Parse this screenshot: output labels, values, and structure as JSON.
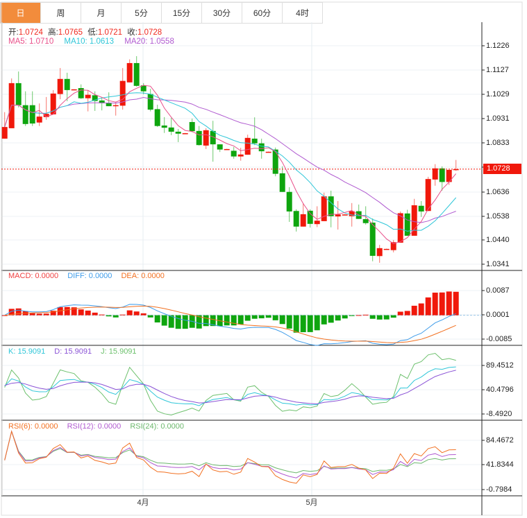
{
  "tabs": [
    {
      "label": "日",
      "active": true
    },
    {
      "label": "周"
    },
    {
      "label": "月"
    },
    {
      "label": "5分"
    },
    {
      "label": "15分"
    },
    {
      "label": "30分"
    },
    {
      "label": "60分"
    },
    {
      "label": "4时"
    }
  ],
  "ohlc_legend": {
    "open_label": "开:",
    "open": "1.0724",
    "high_label": "高:",
    "high": "1.0765",
    "low_label": "低:",
    "low": "1.0721",
    "close_label": "收:",
    "close": "1.0728"
  },
  "ma_legend": {
    "ma5": "MA5: 1.0710",
    "ma10": "MA10: 1.0613",
    "ma20": "MA20: 1.0558"
  },
  "macd_legend": {
    "macd": "MACD: 0.0000",
    "diff": "DIFF: 0.0000",
    "dea": "DEA: 0.0000"
  },
  "kdj_legend": {
    "k": "K: 15.9091",
    "d": "D: 15.9091",
    "j": "J: 15.9091"
  },
  "rsi_legend": {
    "rsi6": "RSI(6): 0.0000",
    "rsi12": "RSI(12): 0.0000",
    "rsi24": "RSI(24): 0.0000"
  },
  "current_price": "1.0728",
  "months": [
    "4月",
    "5月"
  ],
  "colors": {
    "up": "#f0180b",
    "down": "#0ea50e",
    "ma5": "#e84f8a",
    "ma10": "#2ec6d8",
    "ma20": "#b05ad0",
    "diff": "#3d9be9",
    "dea": "#f27020",
    "k": "#2ec6d8",
    "d": "#8a52d6",
    "j": "#6cc06c",
    "rsi6": "#f27020",
    "rsi12": "#b05ad0",
    "rsi24": "#6cb86c",
    "active_tab": "#f28c3c"
  },
  "chart_data": {
    "type": "candlestick",
    "main": {
      "ticks": [
        "1.1226",
        "1.1127",
        "1.1029",
        "1.0931",
        "1.0833",
        "1.0636",
        "1.0538",
        "1.0440",
        "1.0341"
      ],
      "ylim": [
        1.0319,
        1.1321
      ],
      "candles": [
        [
          1.0851,
          1.0958,
          1.0851,
          1.0898
        ],
        [
          1.0893,
          1.1094,
          1.0893,
          1.1075
        ],
        [
          1.1075,
          1.1122,
          1.0977,
          1.0986
        ],
        [
          1.0986,
          1.1042,
          1.0902,
          1.091
        ],
        [
          1.0986,
          1.1042,
          1.0902,
          1.0912
        ],
        [
          1.0916,
          1.0993,
          1.0902,
          1.094
        ],
        [
          1.0938,
          1.1019,
          1.0927,
          1.0951
        ],
        [
          1.0949,
          1.1047,
          1.0949,
          1.1033
        ],
        [
          1.1031,
          1.1136,
          1.101,
          1.1092
        ],
        [
          1.1092,
          1.1117,
          1.1002,
          1.1047
        ],
        [
          1.1047,
          1.105,
          1.1046,
          1.105
        ],
        [
          1.1055,
          1.107,
          1.1011,
          1.1014
        ],
        [
          1.1014,
          1.1047,
          1.0961,
          1.1028
        ],
        [
          1.1026,
          1.1042,
          1.0963,
          1.1003
        ],
        [
          1.1005,
          1.1019,
          1.0965,
          1.0994
        ],
        [
          1.0996,
          1.1038,
          1.0982,
          1.0982
        ],
        [
          1.0982,
          1.1,
          1.0944,
          1.0986
        ],
        [
          1.0984,
          1.1136,
          1.0968,
          1.1084
        ],
        [
          1.1078,
          1.1171,
          1.1078,
          1.1156
        ],
        [
          1.1156,
          1.1184,
          1.1061,
          1.1064
        ],
        [
          1.1066,
          1.1075,
          1.103,
          1.1042
        ],
        [
          1.1031,
          1.1052,
          1.0961,
          1.0968
        ],
        [
          1.097,
          1.0988,
          1.0898,
          1.0902
        ],
        [
          1.0904,
          1.0938,
          1.0874,
          1.0895
        ],
        [
          1.0896,
          1.0935,
          1.0865,
          1.0879
        ],
        [
          1.0879,
          1.089,
          1.0837,
          1.0871
        ],
        [
          1.0872,
          1.0874,
          1.0872,
          1.0873
        ],
        [
          1.0918,
          1.0932,
          1.0877,
          1.0881
        ],
        [
          1.0882,
          1.0902,
          1.0823,
          1.0825
        ],
        [
          1.0823,
          1.0893,
          1.0809,
          1.0885
        ],
        [
          1.0882,
          1.0923,
          1.0758,
          1.0828
        ],
        [
          1.0828,
          1.0828,
          1.0797,
          1.0807
        ],
        [
          1.0808,
          1.081,
          1.0808,
          1.0809
        ],
        [
          1.0802,
          1.0818,
          1.077,
          1.0779
        ],
        [
          1.0779,
          1.0814,
          1.0762,
          1.0787
        ],
        [
          1.0786,
          1.0867,
          1.0786,
          1.0854
        ],
        [
          1.0851,
          1.0937,
          1.0825,
          1.0832
        ],
        [
          1.0832,
          1.0851,
          1.077,
          1.08
        ],
        [
          1.0797,
          1.0799,
          1.0797,
          1.0798
        ],
        [
          1.0807,
          1.0815,
          1.0699,
          1.0709
        ],
        [
          1.0711,
          1.0739,
          1.0636,
          1.0636
        ],
        [
          1.0636,
          1.0655,
          1.0515,
          1.0557
        ],
        [
          1.0559,
          1.0566,
          1.0476,
          1.0496
        ],
        [
          1.0496,
          1.059,
          1.0496,
          1.0546
        ],
        [
          1.056,
          1.0566,
          1.0492,
          1.0507
        ],
        [
          1.0506,
          1.0578,
          1.0494,
          1.052
        ],
        [
          1.0518,
          1.0633,
          1.0518,
          1.0618
        ],
        [
          1.0618,
          1.0641,
          1.0493,
          1.0538
        ],
        [
          1.0537,
          1.0599,
          1.0484,
          1.0545
        ],
        [
          1.0544,
          1.0546,
          1.0544,
          1.0545
        ],
        [
          1.0538,
          1.0591,
          1.0496,
          1.0558
        ],
        [
          1.0558,
          1.0585,
          1.0527,
          1.0527
        ],
        [
          1.0526,
          1.0578,
          1.0504,
          1.051
        ],
        [
          1.0512,
          1.0529,
          1.0356,
          1.0378
        ],
        [
          1.0377,
          1.0422,
          1.035,
          1.0409
        ],
        [
          1.0405,
          1.0407,
          1.0405,
          1.0406
        ],
        [
          1.0401,
          1.0442,
          1.0392,
          1.0433
        ],
        [
          1.0431,
          1.0557,
          1.0431,
          1.055
        ],
        [
          1.0549,
          1.0564,
          1.0459,
          1.0459
        ],
        [
          1.0459,
          1.0608,
          1.0459,
          1.0582
        ],
        [
          1.058,
          1.0599,
          1.0535,
          1.0557
        ],
        [
          1.0559,
          1.0697,
          1.0559,
          1.0688
        ],
        [
          1.0686,
          1.0748,
          1.0661,
          1.0731
        ],
        [
          1.0731,
          1.0739,
          1.0641,
          1.0676
        ],
        [
          1.0676,
          1.0725,
          1.0664,
          1.0725
        ],
        [
          1.0724,
          1.0765,
          1.0721,
          1.0728
        ]
      ]
    },
    "macd": {
      "ticks": [
        "0.0087",
        "0.0001",
        "-0.0085"
      ],
      "ylim": [
        -0.0106,
        0.0158
      ]
    },
    "kdj": {
      "ticks": [
        "89.4512",
        "40.4796",
        "-8.4920"
      ],
      "ylim": [
        -21.1,
        130.6
      ]
    },
    "rsi": {
      "ticks": [
        "84.4672",
        "41.8344",
        "-0.7984"
      ],
      "ylim": [
        -12.0,
        119.4
      ]
    }
  }
}
